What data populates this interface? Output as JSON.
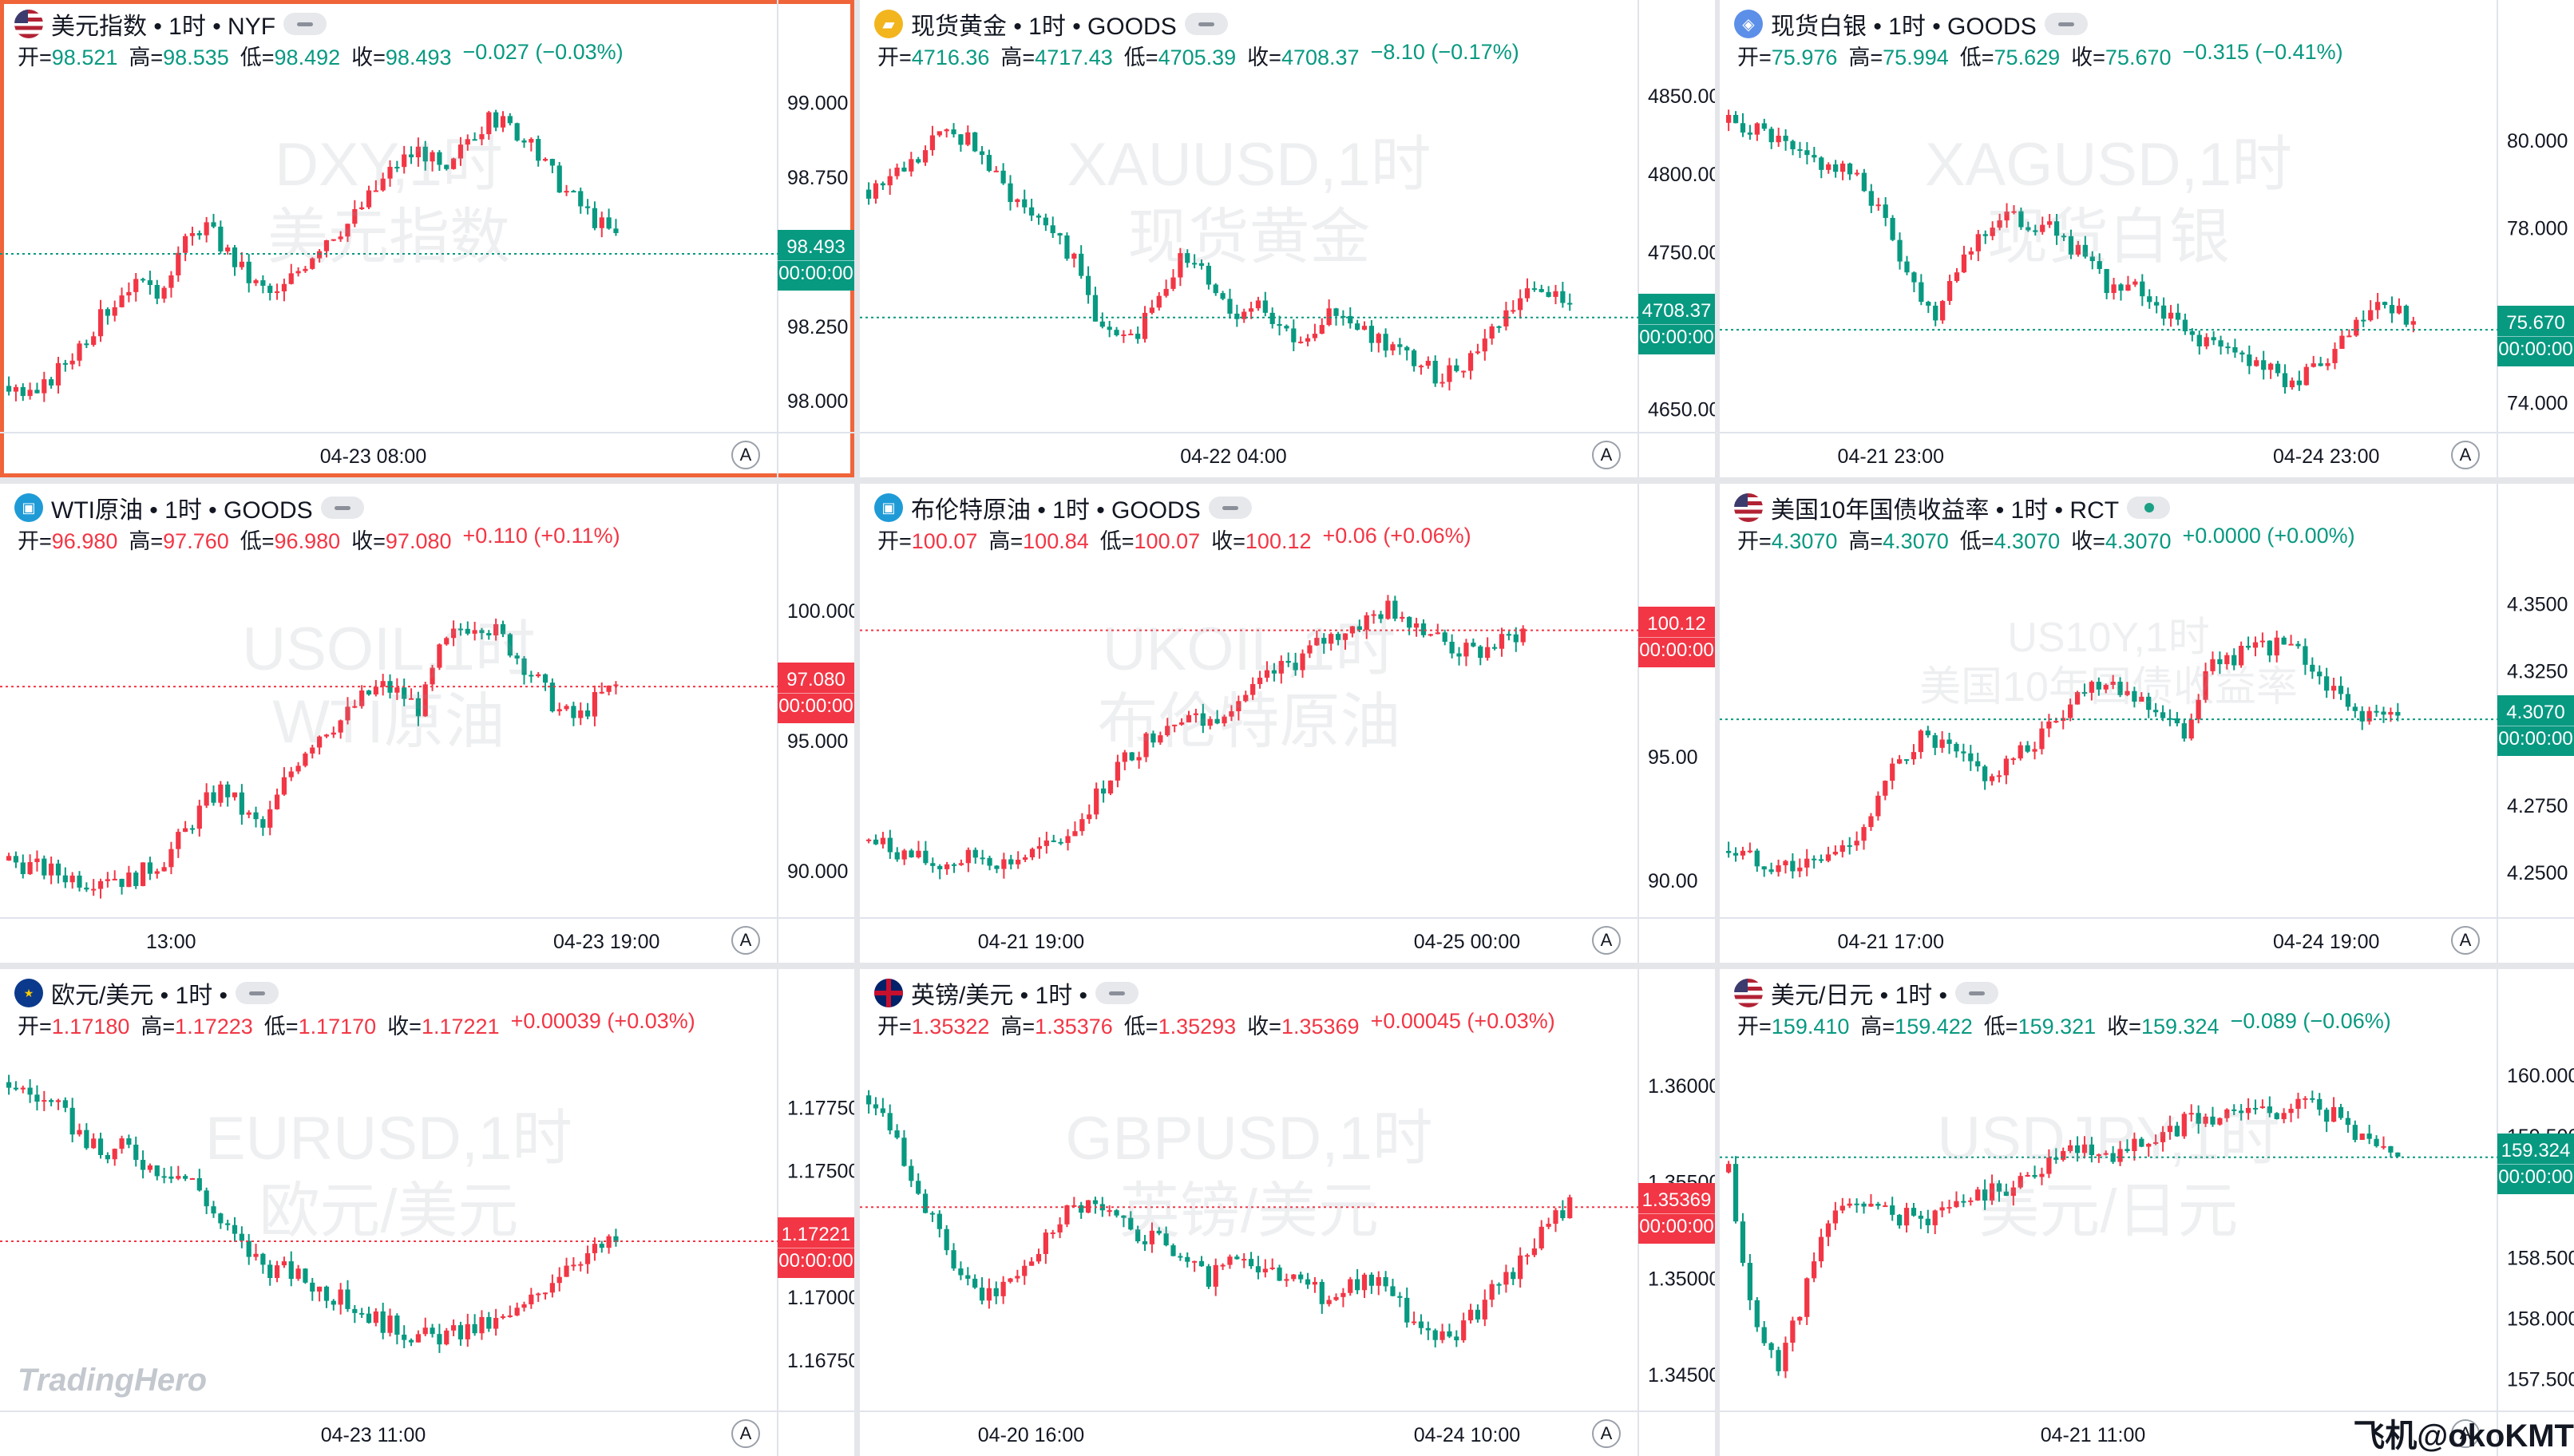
{
  "credit": "飞机@okoKMT",
  "logo": "TradingHero",
  "colors": {
    "up": "#f23645",
    "down": "#089981",
    "active": "#f0643a"
  },
  "panels": [
    {
      "id": "dxy",
      "title": "美元指数 • 1时 • NYF",
      "icon": "us-flag-icon",
      "wm1": "DXY,1时",
      "wm2": "美元指数",
      "ohlc": {
        "o": "98.521",
        "h": "98.535",
        "l": "98.492",
        "c": "98.493",
        "chg": "−0.027 (−0.03%)",
        "dir": "down"
      },
      "price": "98.493",
      "countdown": "00:00:00",
      "priceDir": "down",
      "priceVal": 98.493,
      "yTicks": [
        "99.000",
        "98.750",
        "98.250",
        "98.000"
      ],
      "yVals": [
        99.0,
        98.75,
        98.25,
        98.0
      ],
      "yMin": 97.92,
      "yMax": 99.05,
      "xTicks": [
        "04-23 08:00"
      ],
      "active": true,
      "path": [
        98.05,
        98.0,
        98.1,
        98.2,
        98.3,
        98.4,
        98.35,
        98.5,
        98.6,
        98.5,
        98.4,
        98.35,
        98.45,
        98.55,
        98.6,
        98.7,
        98.8,
        98.85,
        98.75,
        98.9,
        98.95,
        98.9,
        98.8,
        98.7,
        98.62,
        98.55
      ],
      "pathStart": 0.0,
      "pathEnd": 0.8
    },
    {
      "id": "xau",
      "title": "现货黄金 • 1时 • GOODS",
      "icon": "gold-icon",
      "wm1": "XAUUSD,1时",
      "wm2": "现货黄金",
      "ohlc": {
        "o": "4716.36",
        "h": "4717.43",
        "l": "4705.39",
        "c": "4708.37",
        "chg": "−8.10 (−0.17%)",
        "dir": "down"
      },
      "price": "4708.37",
      "countdown": "00:00:00",
      "priceDir": "down",
      "priceVal": 4708.37,
      "yTicks": [
        "4850.00",
        "4800.00",
        "4750.00",
        "4650.00"
      ],
      "yVals": [
        4850,
        4800,
        4750,
        4650
      ],
      "yMin": 4640,
      "yMax": 4855,
      "xTicks": [
        "04-22 04:00"
      ],
      "active": false,
      "path": [
        4790,
        4800,
        4810,
        4830,
        4820,
        4795,
        4780,
        4770,
        4740,
        4700,
        4690,
        4720,
        4745,
        4735,
        4710,
        4720,
        4700,
        4690,
        4715,
        4700,
        4690,
        4680,
        4670,
        4680,
        4700,
        4720,
        4730,
        4712
      ],
      "pathStart": 0.0,
      "pathEnd": 0.92
    },
    {
      "id": "xag",
      "title": "现货白银 • 1时 • GOODS",
      "icon": "silver-icon",
      "wm1": "XAGUSD,1时",
      "wm2": "现货白银",
      "ohlc": {
        "o": "75.976",
        "h": "75.994",
        "l": "75.629",
        "c": "75.670",
        "chg": "−0.315 (−0.41%)",
        "dir": "down"
      },
      "price": "75.670",
      "countdown": "00:00:00",
      "priceDir": "down",
      "priceVal": 75.67,
      "yTicks": [
        "80.000",
        "78.000",
        "76.000",
        "74.000"
      ],
      "yVals": [
        80,
        78,
        76,
        74
      ],
      "yMin": 73.5,
      "yMax": 81.2,
      "xTicks": [
        "04-21 23:00",
        "04-24 23:00"
      ],
      "active": false,
      "path": [
        80.4,
        80.3,
        80.0,
        79.6,
        79.5,
        79.3,
        78.9,
        78.0,
        76.8,
        76.0,
        77.2,
        77.8,
        78.3,
        78.1,
        78.0,
        77.6,
        77.0,
        76.5,
        76.6,
        76.1,
        75.6,
        75.4,
        75.1,
        75.0,
        74.6,
        74.5,
        74.8,
        75.4,
        76.0,
        76.3,
        75.7
      ],
      "pathStart": 0.0,
      "pathEnd": 0.9
    },
    {
      "id": "wti",
      "title": "WTI原油 • 1时 • GOODS",
      "icon": "oil-icon",
      "wm1": "USOIL,1时",
      "wm2": "WTI原油",
      "ohlc": {
        "o": "96.980",
        "h": "97.760",
        "l": "96.980",
        "c": "97.080",
        "chg": "+0.110 (+0.11%)",
        "dir": "up"
      },
      "price": "97.080",
      "countdown": "00:00:00",
      "priceDir": "up",
      "priceVal": 97.08,
      "yTicks": [
        "100.000",
        "95.000",
        "90.000"
      ],
      "yVals": [
        100,
        95,
        90
      ],
      "yMin": 88.5,
      "yMax": 101.5,
      "xTicks": [
        "13:00",
        "04-23 19:00"
      ],
      "active": false,
      "path": [
        90.4,
        90.2,
        90.0,
        89.8,
        89.6,
        89.9,
        89.6,
        90.0,
        90.5,
        91.5,
        92.6,
        93.2,
        92.2,
        91.6,
        93.3,
        94.6,
        95.4,
        95.8,
        96.6,
        97.1,
        96.8,
        96.2,
        98.4,
        99.3,
        99.6,
        99.1,
        98.2,
        97.3,
        96.2,
        95.8,
        96.6,
        97.1
      ],
      "pathStart": 0.0,
      "pathEnd": 0.8
    },
    {
      "id": "brent",
      "title": "布伦特原油 • 1时 • GOODS",
      "icon": "oil-icon",
      "wm1": "UKOIL,1时",
      "wm2": "布伦特原油",
      "ohlc": {
        "o": "100.07",
        "h": "100.84",
        "l": "100.07",
        "c": "100.12",
        "chg": "+0.06 (+0.06%)",
        "dir": "up"
      },
      "price": "100.12",
      "countdown": "00:00:00",
      "priceDir": "up",
      "priceVal": 100.12,
      "yTicks": [
        "95.00",
        "90.00"
      ],
      "yVals": [
        95,
        90
      ],
      "yMin": 88.8,
      "yMax": 102.5,
      "xTicks": [
        "04-21 19:00",
        "04-25 00:00"
      ],
      "active": false,
      "path": [
        91.6,
        91.3,
        90.9,
        90.6,
        90.8,
        91.0,
        90.7,
        91.0,
        91.3,
        92.0,
        93.3,
        94.6,
        95.4,
        96.3,
        96.8,
        96.3,
        97.2,
        97.6,
        98.4,
        98.9,
        99.6,
        100.1,
        100.5,
        101.0,
        100.6,
        100.0,
        99.3,
        99.2,
        99.6,
        100.1
      ],
      "pathStart": 0.0,
      "pathEnd": 0.86
    },
    {
      "id": "us10y",
      "title": "美国10年国债收益率 • 1时 • RCT",
      "icon": "us-flag-icon",
      "wm1": "US10Y,1时",
      "wm2": "美国10年国债收益率",
      "pillDot": true,
      "ohlc": {
        "o": "4.3070",
        "h": "4.3070",
        "l": "4.3070",
        "c": "4.3070",
        "chg": "+0.0000 (+0.00%)",
        "dir": "down"
      },
      "price": "4.3070",
      "countdown": "00:00:00",
      "priceDir": "down",
      "priceVal": 4.307,
      "yTicks": [
        "4.3500",
        "4.3250",
        "4.2750",
        "4.2500"
      ],
      "yVals": [
        4.35,
        4.325,
        4.275,
        4.25
      ],
      "yMin": 4.236,
      "yMax": 4.362,
      "xTicks": [
        "04-21 17:00",
        "04-24 19:00"
      ],
      "active": false,
      "path": [
        4.258,
        4.255,
        4.253,
        4.252,
        4.255,
        4.26,
        4.272,
        4.29,
        4.3,
        4.296,
        4.29,
        4.285,
        4.292,
        4.3,
        4.31,
        4.32,
        4.322,
        4.315,
        4.31,
        4.3,
        4.325,
        4.33,
        4.332,
        4.335,
        4.33,
        4.32,
        4.31,
        4.308,
        4.307
      ],
      "pathStart": 0.0,
      "pathEnd": 0.88
    },
    {
      "id": "eurusd",
      "title": "欧元/美元 • 1时 •",
      "icon": "eu-flag-icon",
      "wm1": "EURUSD,1时",
      "wm2": "欧元/美元",
      "ohlc": {
        "o": "1.17180",
        "h": "1.17223",
        "l": "1.17170",
        "c": "1.17221",
        "chg": "+0.00039 (+0.03%)",
        "dir": "up"
      },
      "price": "1.17221",
      "countdown": "00:00:00",
      "priceDir": "up",
      "priceVal": 1.17221,
      "yTicks": [
        "1.17750",
        "1.17500",
        "1.17000",
        "1.16750"
      ],
      "yVals": [
        1.1775,
        1.175,
        1.17,
        1.1675
      ],
      "yMin": 1.1658,
      "yMax": 1.1795,
      "xTicks": [
        "04-23 11:00"
      ],
      "active": false,
      "path": [
        1.1785,
        1.178,
        1.1775,
        1.1765,
        1.1755,
        1.176,
        1.1752,
        1.175,
        1.1745,
        1.173,
        1.172,
        1.1712,
        1.171,
        1.1705,
        1.17,
        1.1695,
        1.169,
        1.1686,
        1.1684,
        1.1685,
        1.1688,
        1.169,
        1.1695,
        1.1705,
        1.1715,
        1.1718,
        1.1722
      ],
      "pathStart": 0.0,
      "pathEnd": 0.8
    },
    {
      "id": "gbpusd",
      "title": "英镑/美元 • 1时 •",
      "icon": "uk-flag-icon",
      "wm1": "GBPUSD,1时",
      "wm2": "英镑/美元",
      "ohlc": {
        "o": "1.35322",
        "h": "1.35376",
        "l": "1.35293",
        "c": "1.35369",
        "chg": "+0.00045 (+0.03%)",
        "dir": "up"
      },
      "price": "1.35369",
      "countdown": "00:00:00",
      "priceDir": "up",
      "priceVal": 1.35369,
      "yTicks": [
        "1.36000",
        "1.35500",
        "1.35000",
        "1.34500"
      ],
      "yVals": [
        1.36,
        1.355,
        1.35,
        1.345
      ],
      "yMin": 1.3435,
      "yMax": 1.3615,
      "xTicks": [
        "04-20 16:00",
        "04-24 10:00"
      ],
      "active": false,
      "path": [
        1.3595,
        1.358,
        1.3545,
        1.352,
        1.3495,
        1.349,
        1.35,
        1.3515,
        1.3535,
        1.354,
        1.3532,
        1.3525,
        1.352,
        1.3512,
        1.35,
        1.351,
        1.3505,
        1.35,
        1.3495,
        1.349,
        1.3498,
        1.3502,
        1.3484,
        1.347,
        1.3468,
        1.348,
        1.3495,
        1.351,
        1.3525,
        1.3537
      ],
      "pathStart": 0.0,
      "pathEnd": 0.92
    },
    {
      "id": "usdjpy",
      "title": "美元/日元 • 1时 •",
      "icon": "us-flag-icon",
      "wm1": "USDJPY,1时",
      "wm2": "美元/日元",
      "ohlc": {
        "o": "159.410",
        "h": "159.422",
        "l": "159.321",
        "c": "159.324",
        "chg": "−0.089 (−0.06%)",
        "dir": "down"
      },
      "price": "159.324",
      "countdown": "00:00:00",
      "priceDir": "down",
      "priceVal": 159.324,
      "yTicks": [
        "160.000",
        "159.500",
        "158.500",
        "158.000",
        "157.500"
      ],
      "yVals": [
        160,
        159.5,
        158.5,
        158,
        157.5
      ],
      "yMin": 157.3,
      "yMax": 160.15,
      "xTicks": [
        "04-21 11:00"
      ],
      "active": false,
      "path": [
        159.2,
        158.0,
        157.6,
        158.1,
        158.7,
        159.0,
        158.9,
        158.85,
        158.8,
        158.9,
        159.0,
        159.05,
        159.1,
        159.25,
        159.35,
        159.4,
        159.35,
        159.45,
        159.5,
        159.6,
        159.65,
        159.7,
        159.75,
        159.72,
        159.8,
        159.7,
        159.55,
        159.4,
        159.32
      ],
      "pathStart": 0.0,
      "pathEnd": 0.88
    }
  ]
}
